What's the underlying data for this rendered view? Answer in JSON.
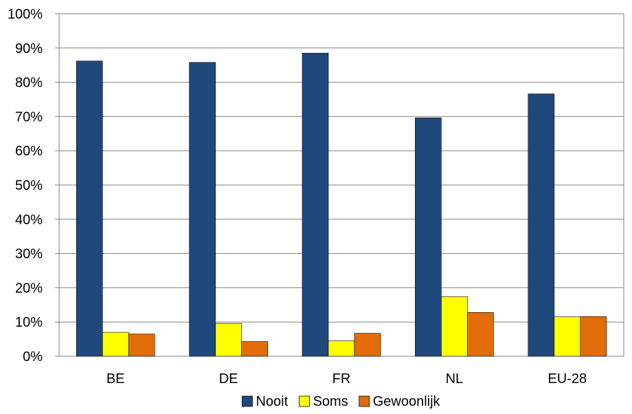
{
  "chart_data": {
    "type": "bar",
    "categories": [
      "BE",
      "DE",
      "FR",
      "NL",
      "EU-28"
    ],
    "series": [
      {
        "name": "Nooit",
        "values": [
          86.2,
          85.8,
          88.5,
          69.6,
          76.6
        ],
        "color": "#1F497D"
      },
      {
        "name": "Soms",
        "values": [
          7.0,
          9.6,
          4.5,
          17.4,
          11.5
        ],
        "color": "#FFFF00"
      },
      {
        "name": "Gewoonlijk",
        "values": [
          6.5,
          4.3,
          6.7,
          12.8,
          11.6
        ],
        "color": "#E36C0A"
      }
    ],
    "ylim": [
      0,
      100
    ],
    "yticks": [
      "0%",
      "10%",
      "20%",
      "30%",
      "40%",
      "50%",
      "60%",
      "70%",
      "80%",
      "90%",
      "100%"
    ],
    "grid": true,
    "legend_position": "bottom"
  }
}
